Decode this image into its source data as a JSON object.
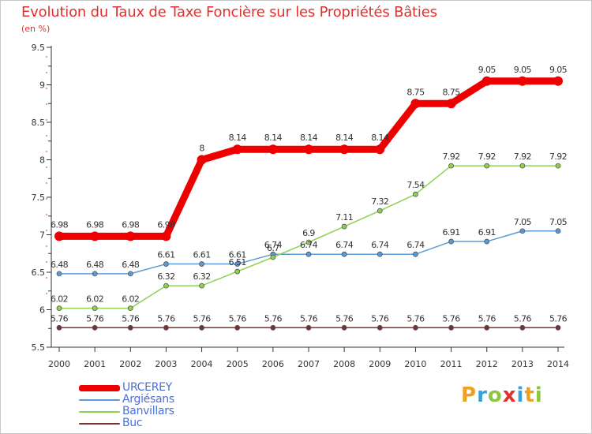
{
  "title": "Evolution du Taux de Taxe Foncière sur les Propriétés Bâties",
  "subtitle": "(en %)",
  "logo": {
    "text": "Proxiti",
    "letters": [
      "P",
      "r",
      "o",
      "x",
      "i",
      "t",
      "i"
    ],
    "colors": [
      "#f0a020",
      "#3aa0d8",
      "#8cc63e",
      "#e03030",
      "#3aa0d8",
      "#f0a020",
      "#8cc63e"
    ]
  },
  "chart_data": {
    "type": "line",
    "title": "Evolution du Taux de Taxe Foncière sur les Propriétés Bâties",
    "ylabel": "(en %)",
    "xlabel": "",
    "x": [
      "2000",
      "2001",
      "2002",
      "2003",
      "2004",
      "2005",
      "2006",
      "2007",
      "2008",
      "2009",
      "2010",
      "2011",
      "2012",
      "2013",
      "2014"
    ],
    "ylim": [
      5.5,
      9.5
    ],
    "yticks": [
      "5.5",
      "6",
      "6.5",
      "7",
      "7.5",
      "8",
      "8.5",
      "9",
      "9.5"
    ],
    "grid": false,
    "legend": "bottom-left",
    "series": [
      {
        "name": "URCEREY",
        "color": "#ee0000",
        "emphasis": true,
        "values": [
          6.98,
          6.98,
          6.98,
          6.98,
          8,
          8.14,
          8.14,
          8.14,
          8.14,
          8.14,
          8.75,
          8.75,
          9.05,
          9.05,
          9.05
        ],
        "labels": [
          "6.98",
          "6.98",
          "6.98",
          "6.98",
          "8",
          "8.14",
          "8.14",
          "8.14",
          "8.14",
          "8.14",
          "8.75",
          "8.75",
          "9.05",
          "9.05",
          "9.05"
        ]
      },
      {
        "name": "Argiésans",
        "color": "#5b9bd5",
        "values": [
          6.48,
          6.48,
          6.48,
          6.61,
          6.61,
          6.61,
          6.74,
          6.74,
          6.74,
          6.74,
          6.74,
          6.91,
          6.91,
          7.05,
          7.05
        ],
        "labels": [
          "6.48",
          "6.48",
          "6.48",
          "6.61",
          "6.61",
          "6.61",
          "6.74",
          "6.74",
          "6.74",
          "6.74",
          "6.74",
          "6.91",
          "6.91",
          "7.05",
          "7.05"
        ]
      },
      {
        "name": "Banvillars",
        "color": "#8fd14f",
        "values": [
          6.02,
          6.02,
          6.02,
          6.32,
          6.32,
          6.51,
          6.7,
          6.9,
          7.11,
          7.32,
          7.54,
          7.92,
          7.92,
          7.92,
          7.92
        ],
        "labels": [
          "6.02",
          "6.02",
          "6.02",
          "6.32",
          "6.32",
          "6.51",
          "6.7",
          "6.9",
          "7.11",
          "7.32",
          "7.54",
          "7.92",
          "7.92",
          "7.92",
          "7.92"
        ]
      },
      {
        "name": "Buc",
        "color": "#7a3030",
        "values": [
          5.76,
          5.76,
          5.76,
          5.76,
          5.76,
          5.76,
          5.76,
          5.76,
          5.76,
          5.76,
          5.76,
          5.76,
          5.76,
          5.76,
          5.76
        ],
        "labels": [
          "5.76",
          "5.76",
          "5.76",
          "5.76",
          "5.76",
          "5.76",
          "5.76",
          "5.76",
          "5.76",
          "5.76",
          "5.76",
          "5.76",
          "5.76",
          "5.76",
          "5.76"
        ]
      }
    ]
  }
}
